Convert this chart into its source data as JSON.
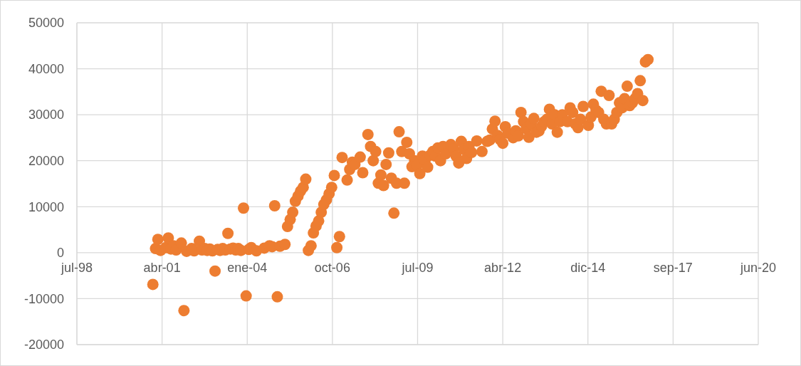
{
  "chart_data": {
    "type": "scatter",
    "color": "#ed7d31",
    "marker": "circle",
    "grid": true,
    "xlim": [
      "1998-07-24",
      "2020-06-18"
    ],
    "xticks": [
      {
        "value": "1998-07-24",
        "label": "jul-98"
      },
      {
        "value": "2001-04-19",
        "label": "abr-01"
      },
      {
        "value": "2004-01-14",
        "label": "ene-04"
      },
      {
        "value": "2006-10-10",
        "label": "oct-06"
      },
      {
        "value": "2009-07-06",
        "label": "jul-09"
      },
      {
        "value": "2012-04-01",
        "label": "abr-12"
      },
      {
        "value": "2014-12-27",
        "label": "dic-14"
      },
      {
        "value": "2017-09-22",
        "label": "sep-17"
      },
      {
        "value": "2020-06-18",
        "label": "jun-20"
      }
    ],
    "ylim": [
      -20000,
      50000
    ],
    "yticks": [
      -20000,
      -10000,
      0,
      10000,
      20000,
      30000,
      40000,
      50000
    ],
    "x": [
      "2001-01",
      "2001-02",
      "2001-03",
      "2001-04",
      "2001-06",
      "2001-07",
      "2001-08",
      "2001-09",
      "2001-10",
      "2001-12",
      "2002-01",
      "2002-02",
      "2002-04",
      "2002-05",
      "2002-07",
      "2002-08",
      "2002-09",
      "2002-10",
      "2002-11",
      "2002-12",
      "2003-01",
      "2003-02",
      "2003-03",
      "2003-04",
      "2003-05",
      "2003-06",
      "2003-07",
      "2003-08",
      "2003-09",
      "2003-10",
      "2003-11",
      "2003-12",
      "2004-01",
      "2004-02",
      "2004-03",
      "2004-05",
      "2004-08",
      "2004-10",
      "2004-11",
      "2004-12",
      "2005-01",
      "2005-02",
      "2005-04",
      "2005-05",
      "2005-06",
      "2005-07",
      "2005-08",
      "2005-09",
      "2005-10",
      "2005-11",
      "2005-12",
      "2006-01",
      "2006-02",
      "2006-03",
      "2006-04",
      "2006-05",
      "2006-06",
      "2006-07",
      "2006-08",
      "2006-09",
      "2006-10",
      "2006-11",
      "2006-12",
      "2007-01",
      "2007-02",
      "2007-04",
      "2007-05",
      "2007-06",
      "2007-07",
      "2007-09",
      "2007-10",
      "2007-12",
      "2008-01",
      "2008-02",
      "2008-03",
      "2008-04",
      "2008-05",
      "2008-06",
      "2008-07",
      "2008-08",
      "2008-09",
      "2008-10",
      "2008-11",
      "2008-12",
      "2009-01",
      "2009-02",
      "2009-03",
      "2009-04",
      "2009-05",
      "2009-06",
      "2009-07",
      "2009-08",
      "2009-09",
      "2009-10",
      "2009-11",
      "2009-12",
      "2010-01",
      "2010-02",
      "2010-03",
      "2010-04",
      "2010-05",
      "2010-06",
      "2010-08",
      "2010-09",
      "2010-10",
      "2010-11",
      "2010-12",
      "2011-01",
      "2011-02",
      "2011-03",
      "2011-04",
      "2011-06",
      "2011-08",
      "2011-10",
      "2011-11",
      "2011-12",
      "2012-01",
      "2012-02",
      "2012-03",
      "2012-04",
      "2012-05",
      "2012-06",
      "2012-08",
      "2012-09",
      "2012-10",
      "2012-11",
      "2012-12",
      "2013-01",
      "2013-02",
      "2013-03",
      "2013-04",
      "2013-05",
      "2013-06",
      "2013-07",
      "2013-08",
      "2013-09",
      "2013-10",
      "2013-11",
      "2013-12",
      "2014-01",
      "2014-02",
      "2014-03",
      "2014-05",
      "2014-06",
      "2014-07",
      "2014-08",
      "2014-09",
      "2014-10",
      "2014-11",
      "2015-01",
      "2015-02",
      "2015-03",
      "2015-04",
      "2015-05",
      "2015-06",
      "2015-07",
      "2015-08",
      "2015-09",
      "2015-10",
      "2015-11",
      "2015-12",
      "2016-01",
      "2016-02",
      "2016-03",
      "2016-04",
      "2016-05",
      "2016-06",
      "2016-07",
      "2016-08",
      "2016-09",
      "2016-10",
      "2016-11",
      "2016-12"
    ],
    "values": [
      -6900,
      900,
      2900,
      500,
      1100,
      3200,
      800,
      1500,
      600,
      2100,
      -12600,
      300,
      900,
      400,
      2500,
      600,
      900,
      500,
      800,
      400,
      -4000,
      700,
      500,
      900,
      600,
      4200,
      800,
      1000,
      600,
      900,
      500,
      9700,
      -9400,
      700,
      1100,
      400,
      1000,
      1500,
      1300,
      10200,
      -9600,
      1400,
      1800,
      5700,
      7200,
      8800,
      11200,
      12300,
      13400,
      14200,
      16000,
      500,
      1500,
      4300,
      5800,
      6900,
      8800,
      10500,
      11500,
      12800,
      14200,
      16800,
      1100,
      3500,
      20700,
      15800,
      18100,
      19700,
      19200,
      20800,
      17400,
      25700,
      23100,
      20000,
      22000,
      15100,
      16900,
      14600,
      19200,
      21700,
      16200,
      8600,
      15100,
      26300,
      22000,
      15100,
      24000,
      21500,
      18700,
      20000,
      19000,
      17200,
      21000,
      20000,
      18600,
      21200,
      22000,
      21000,
      22800,
      20000,
      23100,
      21500,
      23500,
      22600,
      21000,
      19500,
      24200,
      22500,
      20500,
      23100,
      21800,
      24300,
      22000,
      24200,
      24500,
      26900,
      28600,
      25500,
      24600,
      23800,
      27400,
      26000,
      25000,
      26500,
      25400,
      30500,
      28500,
      27000,
      25100,
      28000,
      29200,
      26200,
      26500,
      27500,
      28500,
      29000,
      31200,
      28000,
      30000,
      26200,
      28500,
      30000,
      28500,
      31500,
      30500,
      28000,
      27200,
      29000,
      31800,
      27700,
      29500,
      32300,
      31000,
      30500,
      35100,
      29000,
      28000,
      34200,
      28000,
      29000,
      30500,
      32600,
      31500,
      33500,
      36200,
      32000,
      32600,
      33500,
      34600,
      37400,
      33100,
      41500,
      42000
    ]
  }
}
